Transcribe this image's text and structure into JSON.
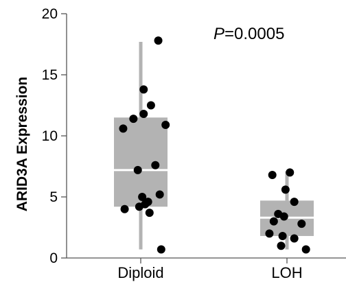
{
  "chart_data": {
    "type": "box",
    "ylabel": "ARID3A Expression",
    "xlabel": "",
    "ylim": [
      0,
      20
    ],
    "yticks": [
      0,
      5,
      10,
      15,
      20
    ],
    "categories": [
      "Diploid",
      "LOH"
    ],
    "annotation": {
      "italic": "P",
      "text": "=0.0005"
    },
    "groups": [
      {
        "name": "Diploid",
        "box": {
          "min": 0.7,
          "q1": 4.2,
          "median": 7.2,
          "q3": 11.5,
          "max": 17.7
        },
        "points": [
          {
            "x": 0.12,
            "y": 17.8
          },
          {
            "x": 0.02,
            "y": 13.8
          },
          {
            "x": 0.07,
            "y": 12.5
          },
          {
            "x": 0.02,
            "y": 11.8
          },
          {
            "x": -0.05,
            "y": 11.4
          },
          {
            "x": 0.17,
            "y": 10.9
          },
          {
            "x": -0.12,
            "y": 10.6
          },
          {
            "x": 0.1,
            "y": 7.6
          },
          {
            "x": -0.02,
            "y": 7.2
          },
          {
            "x": 0.13,
            "y": 5.2
          },
          {
            "x": 0.01,
            "y": 5.0
          },
          {
            "x": 0.05,
            "y": 4.6
          },
          {
            "x": 0.03,
            "y": 4.4
          },
          {
            "x": -0.11,
            "y": 4.0
          },
          {
            "x": -0.01,
            "y": 4.2
          },
          {
            "x": 0.06,
            "y": 3.7
          },
          {
            "x": 0.14,
            "y": 0.7
          }
        ]
      },
      {
        "name": "LOH",
        "box": {
          "min": 0.7,
          "q1": 1.8,
          "median": 3.3,
          "q3": 4.7,
          "max": 7.1
        },
        "points": [
          {
            "x": -0.1,
            "y": 6.8
          },
          {
            "x": 0.02,
            "y": 7.0
          },
          {
            "x": -0.01,
            "y": 5.6
          },
          {
            "x": 0.05,
            "y": 4.6
          },
          {
            "x": -0.06,
            "y": 3.6
          },
          {
            "x": -0.02,
            "y": 3.4
          },
          {
            "x": -0.09,
            "y": 3.0
          },
          {
            "x": 0.1,
            "y": 2.8
          },
          {
            "x": -0.12,
            "y": 2.0
          },
          {
            "x": -0.03,
            "y": 1.8
          },
          {
            "x": 0.05,
            "y": 1.6
          },
          {
            "x": -0.04,
            "y": 1.0
          },
          {
            "x": 0.13,
            "y": 0.7
          }
        ]
      }
    ],
    "colors": {
      "box_fill": "#b3b3b3",
      "whisker": "#b3b3b3",
      "median": "#ffffff",
      "point": "#000000",
      "axis": "#555555"
    }
  }
}
